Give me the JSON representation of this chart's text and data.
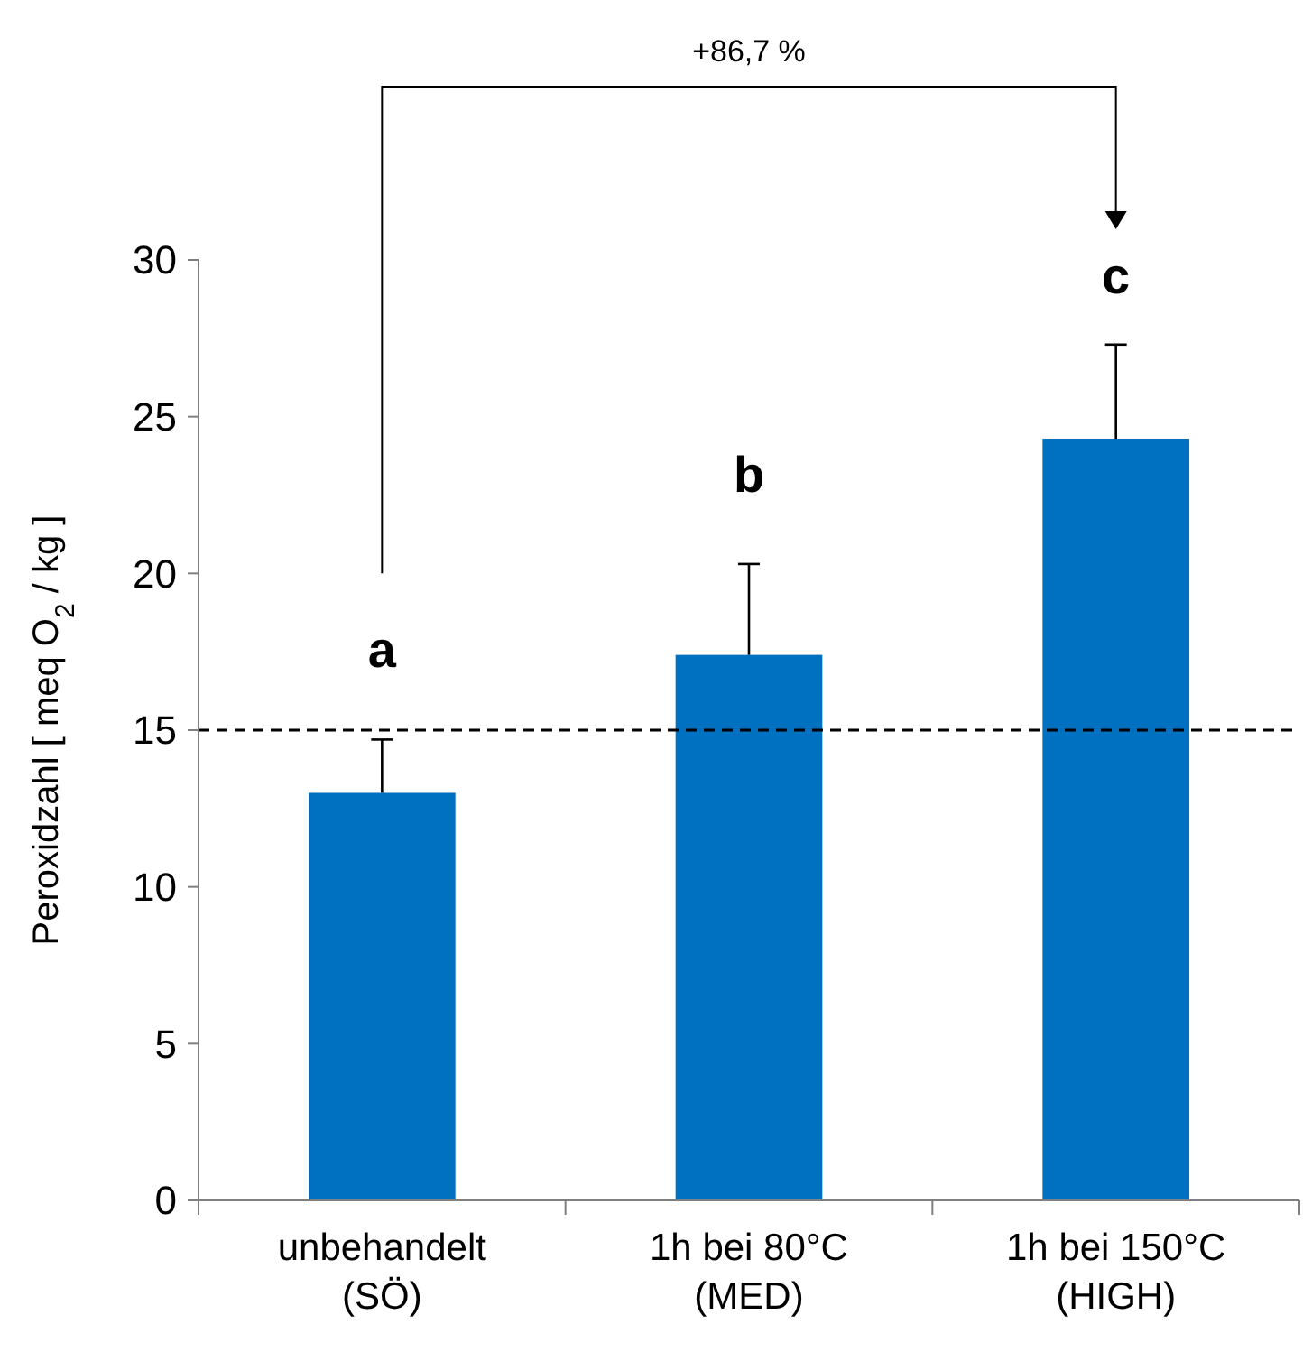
{
  "chart_data": {
    "type": "bar",
    "categories": [
      "unbehandelt\n(SÖ)",
      "1h bei 80°C\n(MED)",
      "1h bei 150°C\n(HIGH)"
    ],
    "values": [
      13.0,
      17.4,
      24.3
    ],
    "color": "#0070c0",
    "errors": [
      [
        13.0,
        14.7
      ],
      [
        17.4,
        20.3
      ],
      [
        24.3,
        27.3
      ]
    ],
    "ylabel": "Peroxidzahl [ meq O$_{2}$ / kg ]",
    "ylim": [
      0,
      30
    ],
    "yticks": [
      0,
      5,
      10,
      15,
      20,
      25,
      30
    ],
    "ref_lines": [
      {
        "axis": "y",
        "value": 15,
        "line_style": "dashed",
        "color": "#000000"
      }
    ],
    "annotations": [
      "a",
      "b",
      "c",
      "+86,7 %"
    ]
  }
}
